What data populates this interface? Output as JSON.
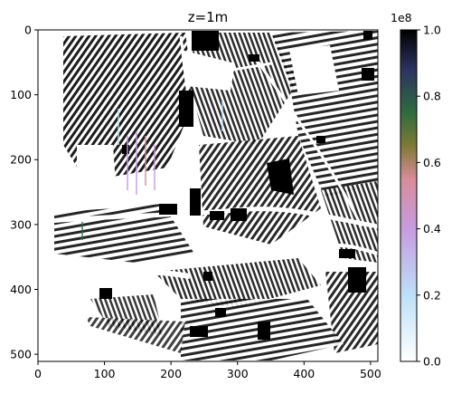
{
  "chart_data": {
    "type": "heatmap",
    "title": "z=1m",
    "xlabel": "",
    "ylabel": "",
    "xlim": [
      0,
      511
    ],
    "ylim": [
      511,
      0
    ],
    "x_ticks": [
      0,
      100,
      200,
      300,
      400,
      500
    ],
    "y_ticks": [
      0,
      100,
      200,
      300,
      400,
      500
    ],
    "x_tick_labels": [
      "0",
      "100",
      "200",
      "300",
      "400",
      "500"
    ],
    "y_tick_labels": [
      "0",
      "100",
      "200",
      "300",
      "400",
      "500"
    ],
    "colorbar": {
      "range": [
        0.0,
        1.0
      ],
      "ticks": [
        0.0,
        0.2,
        0.4,
        0.6,
        0.8,
        1.0
      ],
      "tick_labels": [
        "0.0",
        "0.2",
        "0.4",
        "0.6",
        "0.8",
        "1.0"
      ],
      "offset_label": "1e8",
      "colormap_stops": [
        "#ffffff",
        "#bde0f7",
        "#c79be0",
        "#d88c9a",
        "#7f7a35",
        "#2f6b3f",
        "#2d3360",
        "#000000"
      ]
    },
    "grid": false
  }
}
